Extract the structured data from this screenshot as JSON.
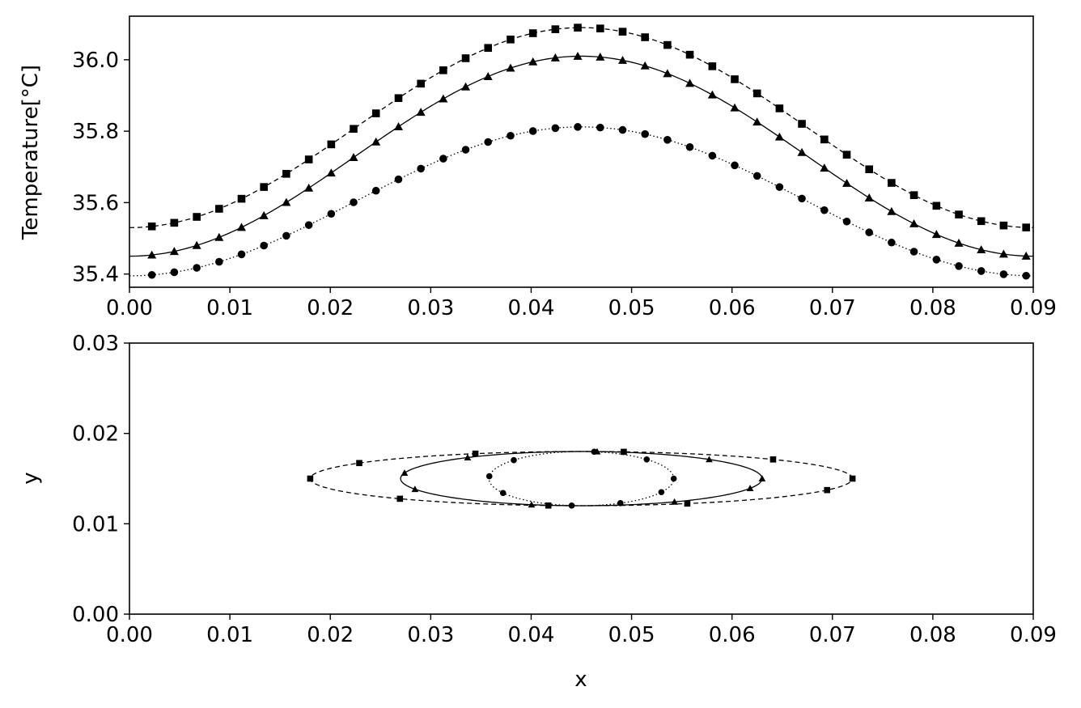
{
  "chart_data": [
    {
      "type": "line",
      "title": "",
      "xlabel": "",
      "ylabel": "Temperature[°C]",
      "xlim": [
        0.0,
        0.09
      ],
      "ylim": [
        35.363,
        36.122
      ],
      "xticks": [
        "0.00",
        "0.01",
        "0.02",
        "0.03",
        "0.04",
        "0.05",
        "0.06",
        "0.07",
        "0.08",
        "0.09"
      ],
      "yticks": [
        "35.4",
        "35.6",
        "35.8",
        "36.0"
      ],
      "grid": false,
      "legend": "none",
      "colors": {
        "line": "#000000",
        "axes": "#000000"
      },
      "series": [
        {
          "marker": "square",
          "linestyle": "dashed",
          "base": 35.53,
          "peak": 36.09,
          "center": 0.045,
          "period": 0.09,
          "marker_x": [
            0.00223,
            0.00446,
            0.0067,
            0.00893,
            0.01116,
            0.01339,
            0.01562,
            0.01786,
            0.02009,
            0.02232,
            0.02455,
            0.02679,
            0.02902,
            0.03125,
            0.03348,
            0.03571,
            0.03795,
            0.04018,
            0.04241,
            0.04464,
            0.04688,
            0.04911,
            0.05134,
            0.05357,
            0.0558,
            0.05804,
            0.06027,
            0.0625,
            0.06473,
            0.06696,
            0.0692,
            0.07143,
            0.07366,
            0.07589,
            0.07812,
            0.08036,
            0.08259,
            0.08482,
            0.08705,
            0.08929
          ]
        },
        {
          "marker": "triangle",
          "linestyle": "solid",
          "base": 35.45,
          "peak": 36.01,
          "center": 0.045,
          "period": 0.09,
          "marker_x": [
            0.00223,
            0.00446,
            0.0067,
            0.00893,
            0.01116,
            0.01339,
            0.01562,
            0.01786,
            0.02009,
            0.02232,
            0.02455,
            0.02679,
            0.02902,
            0.03125,
            0.03348,
            0.03571,
            0.03795,
            0.04018,
            0.04241,
            0.04464,
            0.04688,
            0.04911,
            0.05134,
            0.05357,
            0.0558,
            0.05804,
            0.06027,
            0.0625,
            0.06473,
            0.06696,
            0.0692,
            0.07143,
            0.07366,
            0.07589,
            0.07812,
            0.08036,
            0.08259,
            0.08482,
            0.08705,
            0.08929
          ]
        },
        {
          "marker": "circle",
          "linestyle": "dotted",
          "base": 35.395,
          "peak": 35.812,
          "center": 0.045,
          "period": 0.09,
          "marker_x": [
            0.00223,
            0.00446,
            0.0067,
            0.00893,
            0.01116,
            0.01339,
            0.01562,
            0.01786,
            0.02009,
            0.02232,
            0.02455,
            0.02679,
            0.02902,
            0.03125,
            0.03348,
            0.03571,
            0.03795,
            0.04018,
            0.04241,
            0.04464,
            0.04688,
            0.04911,
            0.05134,
            0.05357,
            0.0558,
            0.05804,
            0.06027,
            0.0625,
            0.06473,
            0.06696,
            0.0692,
            0.07143,
            0.07366,
            0.07589,
            0.07812,
            0.08036,
            0.08259,
            0.08482,
            0.08705,
            0.08929
          ]
        }
      ]
    },
    {
      "type": "line",
      "title": "",
      "xlabel": "x",
      "ylabel": "y",
      "xlim": [
        0.0,
        0.09
      ],
      "ylim": [
        0.0,
        0.03
      ],
      "xticks": [
        "0.00",
        "0.01",
        "0.02",
        "0.03",
        "0.04",
        "0.05",
        "0.06",
        "0.07",
        "0.08",
        "0.09"
      ],
      "yticks": [
        "0.00",
        "0.01",
        "0.02",
        "0.03"
      ],
      "grid": false,
      "legend": "none",
      "colors": {
        "line": "#000000",
        "axes": "#000000"
      },
      "series": [
        {
          "marker": "square",
          "linestyle": "dashed",
          "center": [
            0.045,
            0.015
          ],
          "semi_axes": [
            0.027,
            0.003
          ],
          "marker_angles_deg": [
            0,
            45,
            81,
            113,
            145,
            180,
            228,
            263,
            293,
            335
          ]
        },
        {
          "marker": "triangle",
          "linestyle": "solid",
          "center": [
            0.045,
            0.015
          ],
          "semi_axes": [
            0.018,
            0.003
          ],
          "marker_angles_deg": [
            0,
            45,
            85,
            129,
            168,
            203,
            254,
            301,
            339
          ]
        },
        {
          "marker": "circle",
          "linestyle": "dotted",
          "center": [
            0.045,
            0.015
          ],
          "semi_axes": [
            0.0092,
            0.003
          ],
          "marker_angles_deg": [
            0,
            45,
            82,
            137,
            175,
            212,
            264,
            295,
            330
          ]
        }
      ]
    }
  ]
}
